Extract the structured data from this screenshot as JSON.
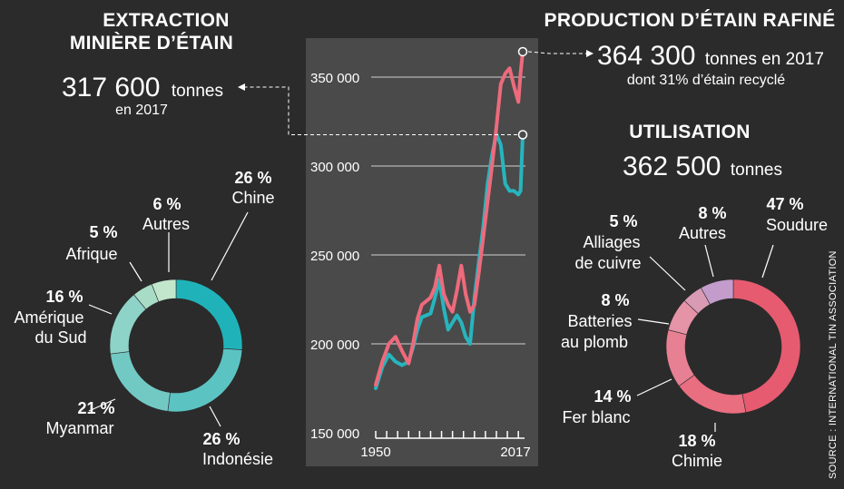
{
  "extraction": {
    "title_line1": "EXTRACTION",
    "title_line2": "MINIÈRE D’ÉTAIN",
    "value": "317 600",
    "unit": "tonnes",
    "year_note": "en 2017"
  },
  "production": {
    "title": "PRODUCTION D’ÉTAIN RAFINÉ",
    "value": "364 300",
    "unit": "tonnes en 2017",
    "note": "dont 31% d’étain recyclé"
  },
  "utilisation": {
    "title": "UTILISATION",
    "value": "362 500",
    "unit": "tonnes"
  },
  "source": "SOURCE : INTERNATIONAL TIN ASSOCIATION",
  "colors": {
    "background": "#2b2b2b",
    "chart_panel": "#4a4a4a",
    "production_line": "#ee6a7c",
    "extraction_line": "#27b5be"
  },
  "chart_data": [
    {
      "type": "line",
      "x": [
        1950,
        1953,
        1956,
        1959,
        1962,
        1965,
        1967,
        1969,
        1971,
        1973,
        1975,
        1977,
        1979,
        1981,
        1983,
        1985,
        1987,
        1989,
        1991,
        1993,
        1995,
        1997,
        1999,
        2001,
        2003,
        2005,
        2007,
        2009,
        2011,
        2013,
        2015,
        2016,
        2017
      ],
      "series": [
        {
          "values": [
            177000,
            190000,
            200000,
            204000,
            196000,
            189000,
            200000,
            214000,
            222000,
            224000,
            226000,
            232000,
            244000,
            228000,
            222000,
            218000,
            230000,
            244000,
            228000,
            218000,
            222000,
            240000,
            260000,
            280000,
            300000,
            322000,
            346000,
            352000,
            355000,
            345000,
            336000,
            352000,
            364300
          ]
        },
        {
          "values": [
            175000,
            187000,
            194000,
            190000,
            188000,
            190000,
            198000,
            208000,
            215000,
            216000,
            217000,
            226000,
            236000,
            220000,
            208000,
            212000,
            216000,
            212000,
            204000,
            200000,
            226000,
            246000,
            266000,
            290000,
            306000,
            318000,
            312000,
            290000,
            286000,
            286000,
            284000,
            286000,
            317600
          ]
        }
      ],
      "yticks": [
        "350 000",
        "300 000",
        "250 000",
        "200 000",
        "150 000"
      ],
      "ylim": [
        150000,
        375000
      ],
      "xticks": [
        "1950",
        "2017"
      ],
      "grid": true
    },
    {
      "type": "pie",
      "style": "donut",
      "slices": [
        {
          "pct": "26 %",
          "label": "Chine",
          "value": 26,
          "color": "#1fb3b9"
        },
        {
          "pct": "26 %",
          "label": "Indonésie",
          "value": 26,
          "color": "#5cc3c3"
        },
        {
          "pct": "21 %",
          "label": "Myanmar",
          "value": 21,
          "color": "#72c9c4"
        },
        {
          "pct": "16 %",
          "label": "Amérique du Sud",
          "value": 16,
          "color": "#8ed3c8"
        },
        {
          "pct": "5 %",
          "label": "Afrique",
          "value": 5,
          "color": "#a9dcc6"
        },
        {
          "pct": "6 %",
          "label": "Autres",
          "value": 6,
          "color": "#c2e6cc"
        }
      ]
    },
    {
      "type": "pie",
      "style": "donut",
      "slices": [
        {
          "pct": "47 %",
          "label": "Soudure",
          "value": 47,
          "color": "#e65b70"
        },
        {
          "pct": "18 %",
          "label": "Chimie",
          "value": 18,
          "color": "#e86e80"
        },
        {
          "pct": "14 %",
          "label": "Fer blanc",
          "value": 14,
          "color": "#e88093"
        },
        {
          "pct": "8 %",
          "label": "Batteries au plomb",
          "value": 8,
          "color": "#e593a7"
        },
        {
          "pct": "5 %",
          "label": "Alliages de cuivre",
          "value": 5,
          "color": "#d99ab3"
        },
        {
          "pct": "8 %",
          "label": "Autres",
          "value": 8,
          "color": "#c39ccc"
        }
      ]
    }
  ]
}
